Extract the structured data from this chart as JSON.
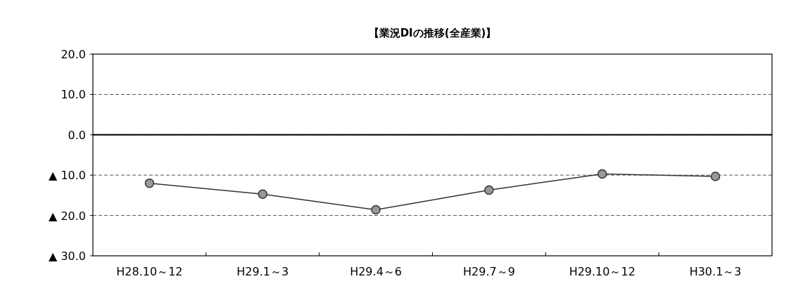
{
  "chart_data": {
    "type": "line",
    "title": "【業況DIの推移(全産業)】",
    "categories": [
      "H28.10～12",
      "H29.1～3",
      "H29.4～6",
      "H29.7～9",
      "H29.10～12",
      "H30.1～3"
    ],
    "series": [
      {
        "color": "#333333",
        "values": [
          -12.0,
          -14.7,
          -18.6,
          -13.7,
          -9.7,
          -10.3
        ]
      }
    ],
    "ylim": [
      -30,
      20
    ],
    "yticks": [
      {
        "value": -30,
        "label": "▲ 30.0"
      },
      {
        "value": -20,
        "label": "▲ 20.0"
      },
      {
        "value": -10,
        "label": "▲ 10.0"
      },
      {
        "value": 0,
        "label": "0.0"
      },
      {
        "value": 10,
        "label": "10.0"
      },
      {
        "value": 20,
        "label": "20.0"
      }
    ],
    "ref_lines": [
      {
        "axis": "y",
        "value": 0,
        "color": "#000000",
        "line_style": "solid"
      }
    ],
    "grid": "y",
    "marker": "circle",
    "line_style": "solid"
  }
}
